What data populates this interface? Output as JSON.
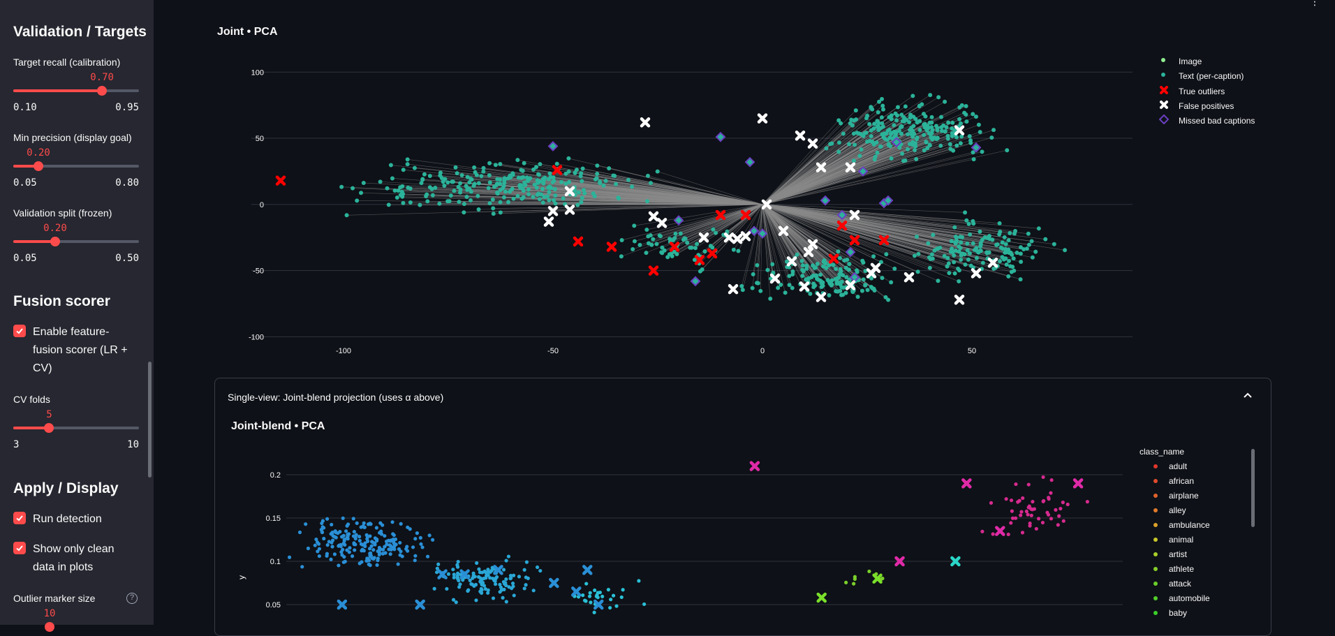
{
  "sidebar": {
    "section1_title": "Validation / Targets",
    "recall": {
      "label": "Target recall (calibration)",
      "value": "0.70",
      "min": "0.10",
      "max": "0.95",
      "fraction": 0.706
    },
    "precision": {
      "label": "Min precision (display goal)",
      "value": "0.20",
      "min": "0.05",
      "max": "0.80",
      "fraction": 0.2
    },
    "split": {
      "label": "Validation split (frozen)",
      "value": "0.20",
      "min": "0.05",
      "max": "0.50",
      "fraction": 0.333
    },
    "section2_title": "Fusion scorer",
    "fusion_checkbox": "Enable feature-fusion scorer (LR + CV)",
    "cv_folds": {
      "label": "CV folds",
      "value": "5",
      "min": "3",
      "max": "10",
      "fraction": 0.286
    },
    "section3_title": "Apply / Display",
    "run_detection": "Run detection",
    "show_clean": "Show only clean data in plots",
    "marker_size": {
      "label": "Outlier marker size",
      "value": "10"
    }
  },
  "colors": {
    "accent": "#ff4b4b",
    "text_points": "#2bb39a",
    "image_points": "#90ee90",
    "outliers": "#ff0000",
    "false_pos": "#ffffff",
    "missed": "#6a3fc1"
  },
  "chart_data": [
    {
      "type": "scatter",
      "title": "Joint • PCA",
      "xlim": [
        -122,
        88
      ],
      "ylim": [
        -104,
        107
      ],
      "x_ticks": [
        -100,
        -50,
        0,
        50
      ],
      "y_ticks": [
        100,
        50,
        0,
        -50,
        -100
      ],
      "grid": true,
      "legend_position": "right",
      "legend": [
        "Image",
        "Text (per-caption)",
        "True outliers",
        "False positives",
        "Missed bad captions"
      ],
      "center": [
        0,
        0
      ],
      "true_outliers": [
        [
          -115,
          18
        ],
        [
          -49,
          26
        ],
        [
          -44,
          -28
        ],
        [
          -36,
          -32
        ],
        [
          -26,
          -50
        ],
        [
          -21,
          -32
        ],
        [
          -15,
          -42
        ],
        [
          -12,
          -37
        ],
        [
          -10,
          -8
        ],
        [
          -4,
          -8
        ],
        [
          19,
          -16
        ],
        [
          22,
          -27
        ],
        [
          17,
          -41
        ],
        [
          29,
          -27
        ]
      ],
      "false_positives": [
        [
          -28,
          62
        ],
        [
          0,
          65
        ],
        [
          9,
          52
        ],
        [
          12,
          46
        ],
        [
          14,
          28
        ],
        [
          21,
          28
        ],
        [
          47,
          56
        ],
        [
          -46,
          10
        ],
        [
          -50,
          -5
        ],
        [
          -51,
          -13
        ],
        [
          -46,
          -4
        ],
        [
          -26,
          -9
        ],
        [
          -24,
          -14
        ],
        [
          -14,
          -25
        ],
        [
          -8,
          -25
        ],
        [
          -6,
          -26
        ],
        [
          -4,
          -24
        ],
        [
          1,
          0
        ],
        [
          5,
          -20
        ],
        [
          11,
          -36
        ],
        [
          12,
          -30
        ],
        [
          7,
          -43
        ],
        [
          -7,
          -64
        ],
        [
          3,
          -56
        ],
        [
          10,
          -62
        ],
        [
          14,
          -70
        ],
        [
          22,
          -8
        ],
        [
          26,
          -52
        ],
        [
          27,
          -48
        ],
        [
          35,
          -55
        ],
        [
          51,
          -52
        ],
        [
          55,
          -44
        ],
        [
          47,
          -72
        ],
        [
          21,
          -61
        ]
      ],
      "missed": [
        [
          -50,
          44
        ],
        [
          -10,
          51
        ],
        [
          -3,
          32
        ],
        [
          32,
          47
        ],
        [
          51,
          43
        ],
        [
          24,
          25
        ],
        [
          15,
          3
        ],
        [
          29,
          1
        ],
        [
          30,
          3
        ],
        [
          -20,
          -12
        ],
        [
          -2,
          -20
        ],
        [
          0,
          -22
        ],
        [
          19,
          -8
        ],
        [
          21,
          -36
        ],
        [
          22,
          -55
        ],
        [
          -16,
          -58
        ]
      ]
    },
    {
      "type": "scatter",
      "title": "Joint-blend • PCA",
      "ylabel": "y",
      "y_ticks": [
        0.2,
        0.15,
        0.1,
        0.05
      ],
      "grid": true,
      "legend_title": "class_name",
      "legend": [
        "adult",
        "african",
        "airplane",
        "alley",
        "ambulance",
        "animal",
        "artist",
        "athlete",
        "attack",
        "automobile",
        "baby"
      ],
      "legend_colors": [
        "#e0362c",
        "#e04b2c",
        "#e0632c",
        "#e07a2c",
        "#dba12a",
        "#c7c72a",
        "#a8cf2a",
        "#86cf2a",
        "#6acf2a",
        "#52cf2a",
        "#3bcf2a"
      ],
      "x_markers_blue": [
        [
          0.05,
          0.05
        ],
        [
          0.12,
          0.05
        ],
        [
          0.14,
          0.085
        ],
        [
          0.16,
          0.085
        ],
        [
          0.19,
          0.09
        ],
        [
          0.24,
          0.075
        ],
        [
          0.26,
          0.065
        ],
        [
          0.27,
          0.09
        ],
        [
          0.28,
          0.05
        ]
      ],
      "x_markers_magenta": [
        [
          0.42,
          0.21
        ],
        [
          0.55,
          0.1
        ],
        [
          0.61,
          0.19
        ],
        [
          0.64,
          0.135
        ],
        [
          0.71,
          0.19
        ]
      ],
      "x_markers_green": [
        [
          0.48,
          0.058
        ],
        [
          0.53,
          0.08
        ]
      ],
      "x_markers_cyan": [
        [
          0.6,
          0.1
        ]
      ]
    }
  ],
  "expander": {
    "header": "Single-view: Joint-blend projection (uses α above)"
  }
}
